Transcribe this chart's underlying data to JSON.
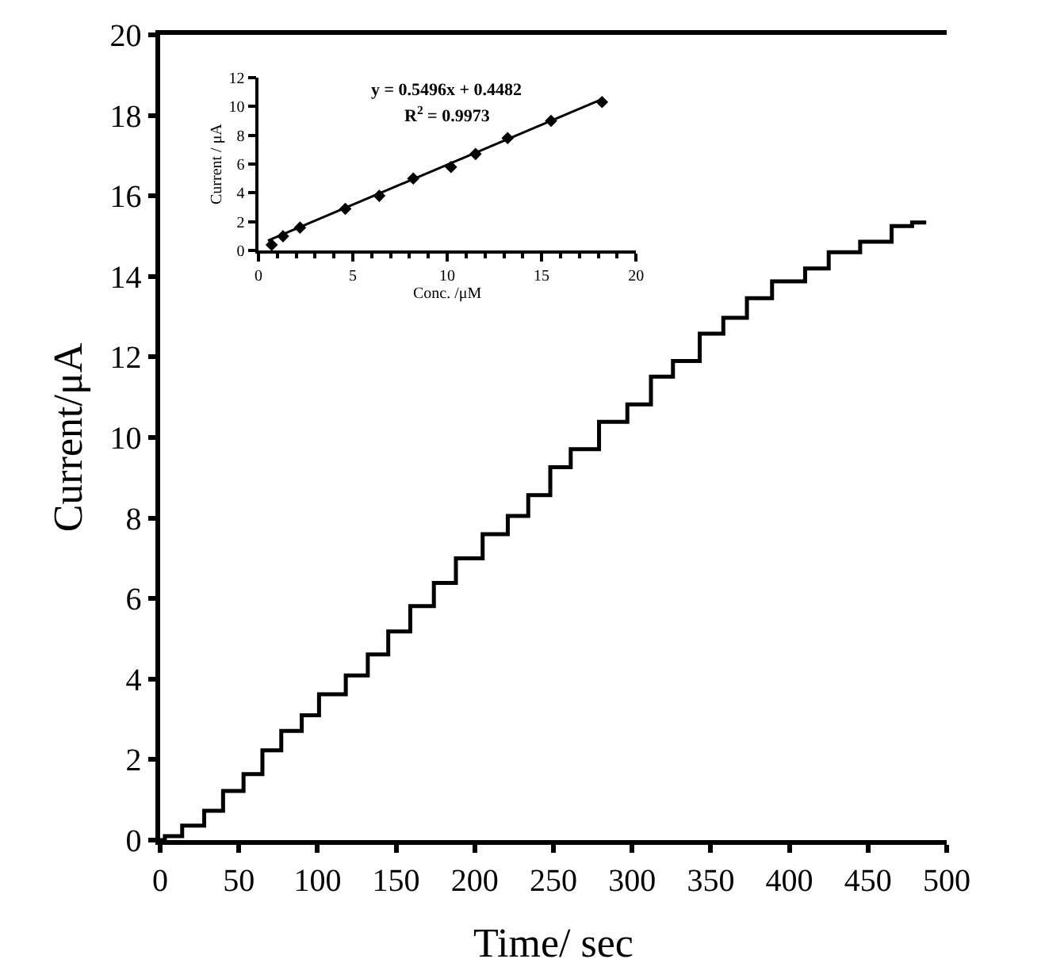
{
  "chart_data": [
    {
      "type": "step",
      "xlabel": "Time/ sec",
      "ylabel": "Current/μA",
      "xlim": [
        0,
        500
      ],
      "ylim": [
        0,
        20
      ],
      "xticks": [
        0,
        50,
        100,
        150,
        200,
        250,
        300,
        350,
        400,
        450,
        500
      ],
      "yticks": [
        0,
        2,
        4,
        6,
        8,
        10,
        12,
        14,
        16,
        18,
        20
      ],
      "line_style": "solid",
      "series": [
        {
          "color": "#000000",
          "x": [
            0,
            3,
            14,
            28,
            40,
            53,
            65,
            77,
            90,
            101,
            118,
            132,
            145,
            159,
            174,
            188,
            205,
            221,
            234,
            248,
            261,
            279,
            297,
            312,
            326,
            343,
            358,
            373,
            389,
            410,
            425,
            445,
            465,
            478,
            487
          ],
          "values": [
            0,
            0.1,
            0.36,
            0.73,
            1.22,
            1.64,
            2.23,
            2.71,
            3.1,
            3.62,
            4.09,
            4.61,
            5.18,
            5.81,
            6.39,
            7.0,
            7.6,
            8.05,
            8.57,
            9.26,
            9.71,
            10.39,
            10.82,
            11.51,
            11.9,
            12.58,
            12.97,
            13.46,
            13.88,
            14.2,
            14.6,
            14.86,
            15.25,
            15.34,
            15.34
          ]
        }
      ]
    },
    {
      "type": "scatter",
      "xlabel": "Conc. /μM",
      "ylabel": "Current / μA",
      "xlim": [
        0,
        20
      ],
      "ylim": [
        0,
        12
      ],
      "xticks": [
        0,
        5,
        10,
        15,
        20
      ],
      "yticks": [
        0,
        2,
        4,
        6,
        8,
        10,
        12
      ],
      "marker": "diamond",
      "annotations": [
        "y = 0.5496x + 0.4482",
        "R$^{2}$ = 0.9973"
      ],
      "series": [
        {
          "color": "#000000",
          "x": [
            0.7,
            1.3,
            2.2,
            4.6,
            6.4,
            8.2,
            10.2,
            11.5,
            13.2,
            15.5,
            18.2
          ],
          "values": [
            0.4,
            1.0,
            1.6,
            2.9,
            3.8,
            5.0,
            5.8,
            6.7,
            7.8,
            9.0,
            10.3
          ]
        },
        {
          "type": "line",
          "marker": "none",
          "color": "#000000",
          "x": [
            0.5,
            18.2
          ],
          "values": [
            0.7,
            10.5
          ]
        }
      ]
    }
  ]
}
